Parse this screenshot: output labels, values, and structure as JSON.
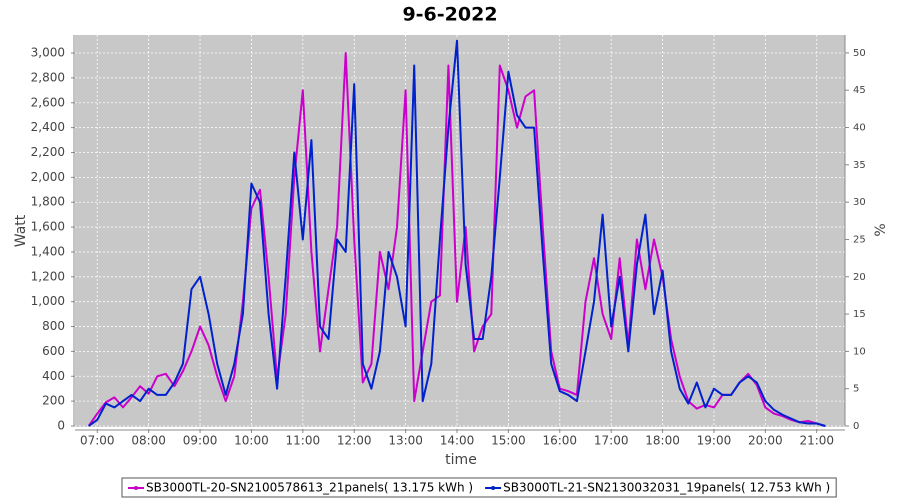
{
  "chart_data": {
    "type": "line",
    "title": "9-6-2022",
    "xlabel": "time",
    "ylabel": "Watt",
    "y2label": "%",
    "x": [
      "06:50",
      "07:00",
      "07:10",
      "07:20",
      "07:30",
      "07:40",
      "07:50",
      "08:00",
      "08:10",
      "08:20",
      "08:30",
      "08:40",
      "08:50",
      "09:00",
      "09:10",
      "09:20",
      "09:30",
      "09:40",
      "09:50",
      "10:00",
      "10:10",
      "10:20",
      "10:30",
      "10:40",
      "10:50",
      "11:00",
      "11:10",
      "11:20",
      "11:30",
      "11:40",
      "11:50",
      "12:00",
      "12:10",
      "12:20",
      "12:30",
      "12:40",
      "12:50",
      "13:00",
      "13:10",
      "13:20",
      "13:30",
      "13:40",
      "13:50",
      "14:00",
      "14:10",
      "14:20",
      "14:30",
      "14:40",
      "14:50",
      "15:00",
      "15:10",
      "15:20",
      "15:30",
      "15:40",
      "15:50",
      "16:00",
      "16:10",
      "16:20",
      "16:30",
      "16:40",
      "16:50",
      "17:00",
      "17:10",
      "17:20",
      "17:30",
      "17:40",
      "17:50",
      "18:00",
      "18:10",
      "18:20",
      "18:30",
      "18:40",
      "18:50",
      "19:00",
      "19:10",
      "19:20",
      "19:30",
      "19:40",
      "19:50",
      "20:00",
      "20:10",
      "20:20",
      "20:30",
      "20:40",
      "20:50",
      "21:00",
      "21:10"
    ],
    "series": [
      {
        "name": "SB3000TL-20-SN2100578613_21panels( 13.175 kWh )",
        "color": "#cc00cc",
        "values": [
          0,
          100,
          190,
          230,
          150,
          230,
          320,
          260,
          400,
          420,
          320,
          440,
          600,
          800,
          650,
          400,
          200,
          400,
          1000,
          1750,
          1900,
          1200,
          380,
          900,
          2000,
          2700,
          1400,
          600,
          1100,
          1600,
          3000,
          1500,
          350,
          500,
          1400,
          1100,
          1600,
          2700,
          200,
          600,
          1000,
          1050,
          2900,
          1000,
          1600,
          600,
          800,
          900,
          2900,
          2700,
          2400,
          2650,
          2700,
          1600,
          600,
          300,
          280,
          250,
          1000,
          1350,
          900,
          700,
          1350,
          650,
          1500,
          1100,
          1500,
          1200,
          700,
          400,
          200,
          140,
          170,
          150,
          250,
          250,
          350,
          420,
          330,
          150,
          100,
          80,
          50,
          30,
          40,
          20,
          0
        ]
      },
      {
        "name": "SB3000TL-21-SN2130032031_19panels( 12.753 kWh )",
        "color": "#0022cc",
        "values": [
          0,
          50,
          180,
          150,
          200,
          250,
          200,
          300,
          250,
          250,
          350,
          500,
          1100,
          1200,
          900,
          500,
          250,
          500,
          900,
          1950,
          1800,
          900,
          300,
          1200,
          2200,
          1500,
          2300,
          800,
          700,
          1500,
          1400,
          2750,
          500,
          300,
          600,
          1400,
          1200,
          800,
          2900,
          200,
          500,
          1500,
          2400,
          3100,
          1300,
          700,
          700,
          1200,
          2000,
          2850,
          2500,
          2400,
          2400,
          1400,
          500,
          280,
          250,
          200,
          600,
          1000,
          1700,
          800,
          1200,
          600,
          1300,
          1700,
          900,
          1250,
          600,
          300,
          180,
          350,
          150,
          300,
          250,
          250,
          350,
          400,
          350,
          200,
          130,
          90,
          60,
          30,
          20,
          20,
          0
        ]
      }
    ],
    "xlim": [
      "06:34",
      "21:33"
    ],
    "xticks": [
      "07:00",
      "08:00",
      "09:00",
      "10:00",
      "11:00",
      "12:00",
      "13:00",
      "14:00",
      "15:00",
      "16:00",
      "17:00",
      "18:00",
      "19:00",
      "20:00",
      "21:00"
    ],
    "ylim": [
      0,
      3145
    ],
    "yticks": [
      0,
      200,
      400,
      600,
      800,
      {
        "value": 1000,
        "label": "1,000"
      },
      {
        "value": 1200,
        "label": "1,200"
      },
      {
        "value": 1400,
        "label": "1,400"
      },
      {
        "value": 1600,
        "label": "1,600"
      },
      {
        "value": 1800,
        "label": "1,800"
      },
      {
        "value": 2000,
        "label": "2,000"
      },
      {
        "value": 2200,
        "label": "2,200"
      },
      {
        "value": 2400,
        "label": "2,400"
      },
      {
        "value": 2600,
        "label": "2,600"
      },
      {
        "value": 2800,
        "label": "2,800"
      },
      {
        "value": 3000,
        "label": "3,000"
      }
    ],
    "y2lim": [
      0,
      52.4
    ],
    "y2ticks": [
      0,
      5,
      10,
      15,
      20,
      25,
      30,
      35,
      40,
      45,
      50
    ],
    "grid": true,
    "legend": "bottom"
  }
}
